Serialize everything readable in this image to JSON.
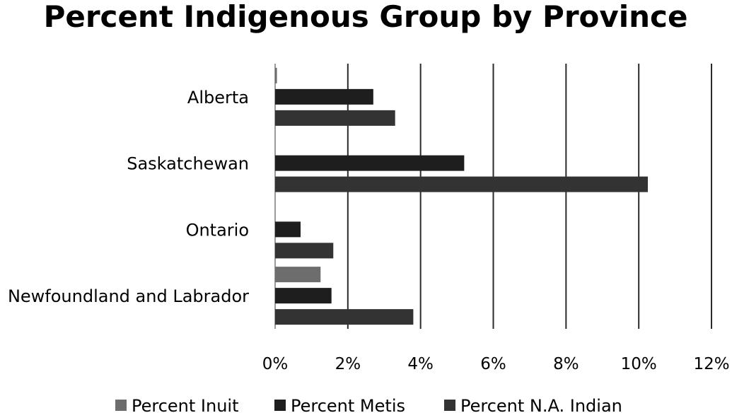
{
  "chart_data": {
    "type": "bar",
    "orientation": "horizontal",
    "title": "Percent  Indigenous Group by Province",
    "categories": [
      "Alberta",
      "Saskatchewan",
      "Ontario",
      "Newfoundland and Labrador"
    ],
    "series": [
      {
        "name": "Percent Inuit",
        "color": "#6d6d6d",
        "values": [
          0.05,
          0.0,
          0.0,
          1.25
        ]
      },
      {
        "name": "Percent Metis",
        "color": "#1e1e1e",
        "values": [
          2.7,
          5.2,
          0.7,
          1.55
        ]
      },
      {
        "name": "Percent N.A. Indian",
        "color": "#333333",
        "values": [
          3.3,
          10.25,
          1.6,
          3.8
        ]
      }
    ],
    "xlim": [
      0,
      12
    ],
    "xticks": [
      0,
      2,
      4,
      6,
      8,
      10,
      12
    ],
    "tick_labels": [
      "0%",
      "2%",
      "4%",
      "6%",
      "8%",
      "10%",
      "12%"
    ],
    "grid": true,
    "legend_position": "bottom"
  }
}
